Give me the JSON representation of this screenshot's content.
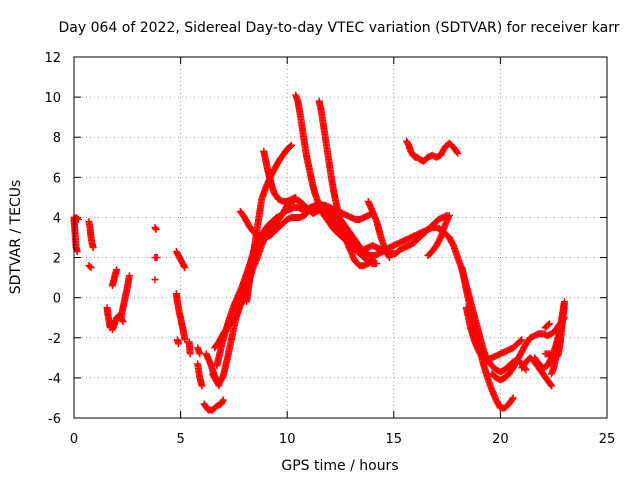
{
  "chart_data": {
    "type": "scatter",
    "title": "Day 064 of 2022, Sidereal Day-to-day VTEC variation (SDTVAR) for receiver karr",
    "xlabel": "GPS time / hours",
    "ylabel": "SDTVAR / TECUs",
    "xlim": [
      0,
      25
    ],
    "ylim": [
      -6,
      12
    ],
    "x_ticks": [
      "0",
      "5",
      "10",
      "15",
      "20",
      "25"
    ],
    "y_ticks": [
      "-6",
      "-4",
      "-2",
      "0",
      "2",
      "4",
      "6",
      "8",
      "10",
      "12"
    ],
    "x_tick_values": [
      0,
      5,
      10,
      15,
      20,
      25
    ],
    "y_tick_values": [
      -6,
      -4,
      -2,
      0,
      2,
      4,
      6,
      8,
      10,
      12
    ],
    "grid": true,
    "marker": "plus",
    "color": "#ff0000",
    "segments": [
      {
        "x": [
          0.0,
          0.05,
          0.1,
          0.15
        ],
        "y": [
          4.0,
          3.2,
          2.5,
          2.3
        ]
      },
      {
        "x": [
          0.0,
          0.1,
          0.2
        ],
        "y": [
          3.8,
          4.0,
          3.9
        ]
      },
      {
        "x": [
          0.7,
          0.75,
          0.8,
          0.85,
          0.9
        ],
        "y": [
          3.8,
          3.5,
          3.0,
          2.7,
          2.5
        ]
      },
      {
        "x": [
          0.7,
          0.8
        ],
        "y": [
          1.6,
          1.5
        ]
      },
      {
        "x": [
          1.55,
          1.6,
          1.65,
          1.7
        ],
        "y": [
          -0.5,
          -0.9,
          -1.2,
          -1.5
        ]
      },
      {
        "x": [
          1.8,
          1.9,
          2.0,
          2.1,
          2.2,
          2.3
        ],
        "y": [
          -1.6,
          -1.3,
          -1.0,
          -0.9,
          -1.0,
          -1.2
        ]
      },
      {
        "x": [
          1.8,
          1.9,
          2.0
        ],
        "y": [
          0.6,
          1.0,
          1.4
        ]
      },
      {
        "x": [
          2.2,
          2.3,
          2.4,
          2.5,
          2.55,
          2.6
        ],
        "y": [
          -1.0,
          -0.5,
          0.0,
          0.5,
          0.8,
          1.1
        ]
      },
      {
        "x": [
          3.8,
          3.85
        ],
        "y": [
          3.5,
          3.4
        ]
      },
      {
        "x": [
          3.8,
          3.9
        ],
        "y": [
          2.0,
          2.0
        ]
      },
      {
        "x": [
          3.8
        ],
        "y": [
          0.9
        ]
      },
      {
        "x": [
          4.8,
          4.9,
          5.0,
          5.1,
          5.2
        ],
        "y": [
          2.3,
          2.1,
          1.9,
          1.7,
          1.5
        ]
      },
      {
        "x": [
          4.8,
          4.85,
          4.9,
          4.95,
          5.0,
          5.05,
          5.1,
          5.15,
          5.2
        ],
        "y": [
          0.2,
          -0.2,
          -0.5,
          -0.8,
          -1.0,
          -1.3,
          -1.5,
          -1.8,
          -2.1
        ]
      },
      {
        "x": [
          4.85,
          4.9
        ],
        "y": [
          -2.1,
          -2.3
        ]
      },
      {
        "x": [
          5.4,
          5.45
        ],
        "y": [
          -2.2,
          -2.8
        ]
      },
      {
        "x": [
          5.8,
          5.9
        ],
        "y": [
          -2.5,
          -2.8
        ]
      },
      {
        "x": [
          5.8,
          5.9,
          6.0
        ],
        "y": [
          -3.3,
          -4.0,
          -4.4
        ]
      },
      {
        "x": [
          6.1,
          6.3,
          6.5,
          6.7,
          6.9,
          7.0
        ],
        "y": [
          -5.3,
          -5.6,
          -5.6,
          -5.4,
          -5.3,
          -5.1
        ]
      },
      {
        "x": [
          6.2,
          6.4,
          6.6,
          6.8
        ],
        "y": [
          -2.8,
          -3.3,
          -3.9,
          -4.4
        ]
      },
      {
        "x": [
          6.5,
          6.6,
          6.7,
          6.8,
          7.0,
          7.2,
          7.4,
          7.6,
          7.8,
          8.0,
          8.2,
          8.4,
          8.5
        ],
        "y": [
          -3.8,
          -4.0,
          -4.2,
          -4.3,
          -3.9,
          -3.0,
          -2.0,
          -1.0,
          0.0,
          0.8,
          1.5,
          2.2,
          2.6
        ]
      },
      {
        "x": [
          6.6,
          6.8,
          7.0,
          7.2,
          7.4,
          7.6,
          7.8,
          8.0,
          8.2,
          8.4,
          8.6,
          8.8,
          9.0,
          9.2,
          9.4,
          9.6,
          9.8,
          10.0,
          10.2,
          10.4,
          10.6,
          10.8,
          11.0,
          11.2,
          11.4,
          11.6,
          11.8,
          12.0,
          12.2,
          12.4,
          12.6,
          12.8,
          13.0,
          13.2,
          13.4,
          13.6,
          13.8,
          14.0,
          14.2,
          14.4,
          14.6,
          14.8,
          15.0,
          15.2,
          15.4,
          15.6,
          15.8,
          16.0,
          16.2,
          16.4,
          16.6,
          16.8,
          17.0,
          17.2,
          17.4,
          17.6
        ],
        "y": [
          -2.5,
          -2.2,
          -1.8,
          -1.5,
          -1.2,
          -1.0,
          -0.4,
          0.0,
          0.8,
          1.5,
          2.0,
          2.6,
          3.1,
          3.4,
          3.6,
          3.9,
          4.2,
          4.6,
          4.8,
          4.9,
          4.8,
          4.6,
          4.4,
          4.2,
          4.3,
          4.4,
          4.3,
          4.1,
          3.8,
          3.5,
          3.2,
          3.0,
          2.8,
          2.6,
          2.4,
          2.4,
          2.5,
          2.6,
          2.5,
          2.4,
          2.4,
          2.5,
          2.6,
          2.7,
          2.8,
          2.9,
          3.0,
          3.1,
          3.2,
          3.3,
          3.4,
          3.5,
          3.5,
          3.4,
          3.2,
          3.0
        ]
      },
      {
        "x": [
          6.7,
          6.9,
          7.1,
          7.3,
          7.5,
          7.7,
          7.9,
          8.1,
          8.3,
          8.5,
          8.7,
          8.9,
          9.1,
          9.3,
          9.5,
          9.7,
          9.9,
          10.1,
          10.3,
          10.5,
          10.7,
          10.9,
          11.1,
          11.3,
          11.5,
          11.7,
          11.9,
          12.1,
          12.3,
          12.5,
          12.7,
          12.9,
          13.1,
          13.3,
          13.5,
          13.7,
          13.9,
          14.1,
          14.3,
          14.5,
          14.7,
          14.9,
          15.1,
          15.3,
          15.5,
          15.7,
          15.9,
          16.1,
          16.3,
          16.5,
          16.7,
          16.9,
          17.1,
          17.3,
          17.5
        ],
        "y": [
          -3.4,
          -2.5,
          -1.7,
          -1.0,
          -0.4,
          0.1,
          0.6,
          1.2,
          1.8,
          2.3,
          2.9,
          3.3,
          3.6,
          3.8,
          4.0,
          4.1,
          4.3,
          4.4,
          4.5,
          4.5,
          4.4,
          4.4,
          4.5,
          4.6,
          4.7,
          4.6,
          4.4,
          4.3,
          4.1,
          3.9,
          3.6,
          3.3,
          3.0,
          2.7,
          2.4,
          2.2,
          2.1,
          2.1,
          2.2,
          2.3,
          2.3,
          2.2,
          2.2,
          2.4,
          2.5,
          2.6,
          2.7,
          2.9,
          3.1,
          3.3,
          3.5,
          3.7,
          3.9,
          4.0,
          4.1
        ]
      },
      {
        "x": [
          7.8,
          8.0,
          8.2,
          8.4,
          8.6,
          8.8,
          9.0,
          9.2,
          9.4,
          9.6,
          9.8,
          10.0,
          10.2,
          10.4,
          10.6,
          10.8,
          11.0,
          11.2,
          11.4,
          11.6,
          11.8,
          12.0,
          12.2,
          12.4,
          12.6,
          12.8,
          13.0,
          13.2,
          13.4,
          13.6,
          13.8,
          14.0
        ],
        "y": [
          4.3,
          4.0,
          3.6,
          3.3,
          3.1,
          3.0,
          3.0,
          3.1,
          3.3,
          3.5,
          3.7,
          3.9,
          4.0,
          4.0,
          4.0,
          4.1,
          4.3,
          4.4,
          4.5,
          4.6,
          4.6,
          4.5,
          4.4,
          4.3,
          4.2,
          4.1,
          4.0,
          3.9,
          3.9,
          4.0,
          4.1,
          4.2
        ]
      },
      {
        "x": [
          8.1,
          8.2,
          8.3,
          8.4,
          8.5,
          8.6,
          8.7,
          8.8,
          9.0,
          9.2,
          9.4,
          9.6,
          9.8,
          10.0,
          10.2
        ],
        "y": [
          -0.2,
          0.6,
          1.4,
          2.1,
          2.8,
          3.5,
          4.2,
          4.9,
          5.5,
          6.0,
          6.4,
          6.8,
          7.1,
          7.4,
          7.6
        ]
      },
      {
        "x": [
          8.9,
          9.0,
          9.1,
          9.2,
          9.3,
          9.4,
          9.6,
          9.8,
          10.0,
          10.2,
          10.4
        ],
        "y": [
          7.3,
          6.8,
          6.3,
          5.9,
          5.5,
          5.2,
          4.9,
          4.8,
          4.8,
          4.9,
          5.0
        ]
      },
      {
        "x": [
          10.4,
          10.5,
          10.6,
          10.7,
          10.8,
          10.9,
          11.0,
          11.1,
          11.2,
          11.3,
          11.4,
          11.5,
          11.6,
          11.8,
          12.0,
          12.2,
          12.4,
          12.6,
          12.8,
          13.0,
          13.2,
          13.4,
          13.6,
          13.8,
          14.0,
          14.2
        ],
        "y": [
          10.1,
          9.8,
          9.2,
          8.5,
          7.8,
          7.1,
          6.6,
          6.1,
          5.6,
          5.2,
          4.9,
          4.6,
          4.3,
          4.0,
          3.7,
          3.4,
          3.2,
          3.0,
          2.8,
          2.6,
          2.4,
          2.2,
          2.0,
          1.8,
          1.7,
          1.7
        ]
      },
      {
        "x": [
          11.5,
          11.6,
          11.7,
          11.8,
          11.9,
          12.0,
          12.1,
          12.2,
          12.3,
          12.4,
          12.5,
          12.6,
          12.7,
          12.8,
          12.9,
          13.0,
          13.1,
          13.2,
          13.4,
          13.6,
          13.8,
          14.0
        ],
        "y": [
          9.8,
          9.3,
          8.6,
          7.9,
          7.2,
          6.5,
          5.8,
          5.2,
          4.7,
          4.2,
          3.8,
          3.4,
          3.1,
          2.8,
          2.5,
          2.3,
          2.0,
          1.8,
          1.6,
          1.6,
          1.7,
          1.9
        ]
      },
      {
        "x": [
          13.8,
          14.0,
          14.2,
          14.4,
          14.6,
          14.8
        ],
        "y": [
          4.8,
          4.3,
          3.8,
          3.0,
          2.4,
          2.0
        ]
      },
      {
        "x": [
          15.6,
          15.7,
          15.8,
          15.9,
          16.0,
          16.1,
          16.2,
          16.4,
          16.6,
          16.8,
          17.0,
          17.2,
          17.4,
          17.6,
          17.8,
          18.0
        ],
        "y": [
          7.8,
          7.6,
          7.3,
          7.1,
          7.0,
          7.0,
          6.9,
          6.8,
          7.0,
          7.1,
          7.0,
          7.1,
          7.5,
          7.7,
          7.5,
          7.2
        ]
      },
      {
        "x": [
          16.6,
          16.8,
          17.0,
          17.2,
          17.4,
          17.6
        ],
        "y": [
          2.1,
          2.3,
          2.6,
          3.0,
          3.6,
          4.1
        ]
      },
      {
        "x": [
          17.6,
          17.8,
          18.0,
          18.2,
          18.4,
          18.6,
          18.8,
          19.0,
          19.2,
          19.4,
          19.6,
          19.8,
          20.0,
          20.2,
          20.4,
          20.6,
          20.8,
          21.0,
          21.2
        ],
        "y": [
          3.0,
          2.6,
          2.0,
          1.4,
          0.6,
          -0.2,
          -1.0,
          -1.8,
          -2.6,
          -3.1,
          -3.4,
          -3.6,
          -3.7,
          -3.6,
          -3.4,
          -3.2,
          -3.1,
          -3.3,
          -3.6
        ]
      },
      {
        "x": [
          18.2,
          18.4,
          18.6,
          18.8,
          19.0,
          19.2,
          19.4,
          19.6,
          19.8,
          20.0,
          20.2,
          20.4,
          20.6
        ],
        "y": [
          1.5,
          0.4,
          -0.6,
          -1.6,
          -2.5,
          -3.3,
          -4.0,
          -4.6,
          -5.1,
          -5.5,
          -5.5,
          -5.3,
          -5.0
        ]
      },
      {
        "x": [
          18.4,
          18.6,
          18.8,
          19.0,
          19.2,
          19.4,
          19.6,
          19.8,
          20.0,
          20.2,
          20.4,
          20.6,
          20.8,
          21.0
        ],
        "y": [
          -0.5,
          -1.5,
          -2.2,
          -2.7,
          -3.0,
          -3.1,
          -3.0,
          -2.9,
          -2.8,
          -2.7,
          -2.6,
          -2.5,
          -2.3,
          -2.1
        ]
      },
      {
        "x": [
          19.6,
          19.8,
          20.0,
          20.2,
          20.4,
          20.6,
          20.8,
          21.0,
          21.2,
          21.4,
          21.6,
          21.8,
          22.0,
          22.2,
          22.4,
          22.6,
          22.8,
          23.0
        ],
        "y": [
          -3.8,
          -4.0,
          -4.1,
          -4.0,
          -3.8,
          -3.5,
          -3.1,
          -2.7,
          -2.3,
          -2.0,
          -1.9,
          -1.8,
          -1.8,
          -1.9,
          -1.8,
          -1.6,
          -1.3,
          -1.0
        ]
      },
      {
        "x": [
          21.0,
          21.2,
          21.4,
          21.6,
          21.8,
          22.0,
          22.2,
          22.4
        ],
        "y": [
          -3.5,
          -3.2,
          -3.0,
          -3.2,
          -3.5,
          -3.8,
          -4.1,
          -4.4
        ]
      },
      {
        "x": [
          21.6,
          21.8,
          22.0,
          22.2,
          22.4,
          22.6,
          22.8,
          23.0
        ],
        "y": [
          -3.0,
          -3.3,
          -3.5,
          -3.4,
          -3.0,
          -2.4,
          -1.6,
          -0.5
        ]
      },
      {
        "x": [
          22.1,
          22.3,
          22.5,
          22.7,
          22.8,
          22.9,
          23.0
        ],
        "y": [
          -2.8,
          -2.8,
          -3.0,
          -2.9,
          -2.3,
          -1.3,
          -0.3
        ]
      },
      {
        "x": [
          22.4,
          22.5,
          22.6,
          22.7,
          22.8,
          22.9,
          23.0
        ],
        "y": [
          -3.8,
          -3.5,
          -3.0,
          -2.4,
          -1.7,
          -0.9,
          -0.2
        ]
      },
      {
        "x": [
          20.9
        ],
        "y": [
          -2.9
        ]
      },
      {
        "x": [
          22.1,
          22.3
        ],
        "y": [
          -1.5,
          -1.3
        ]
      }
    ]
  }
}
